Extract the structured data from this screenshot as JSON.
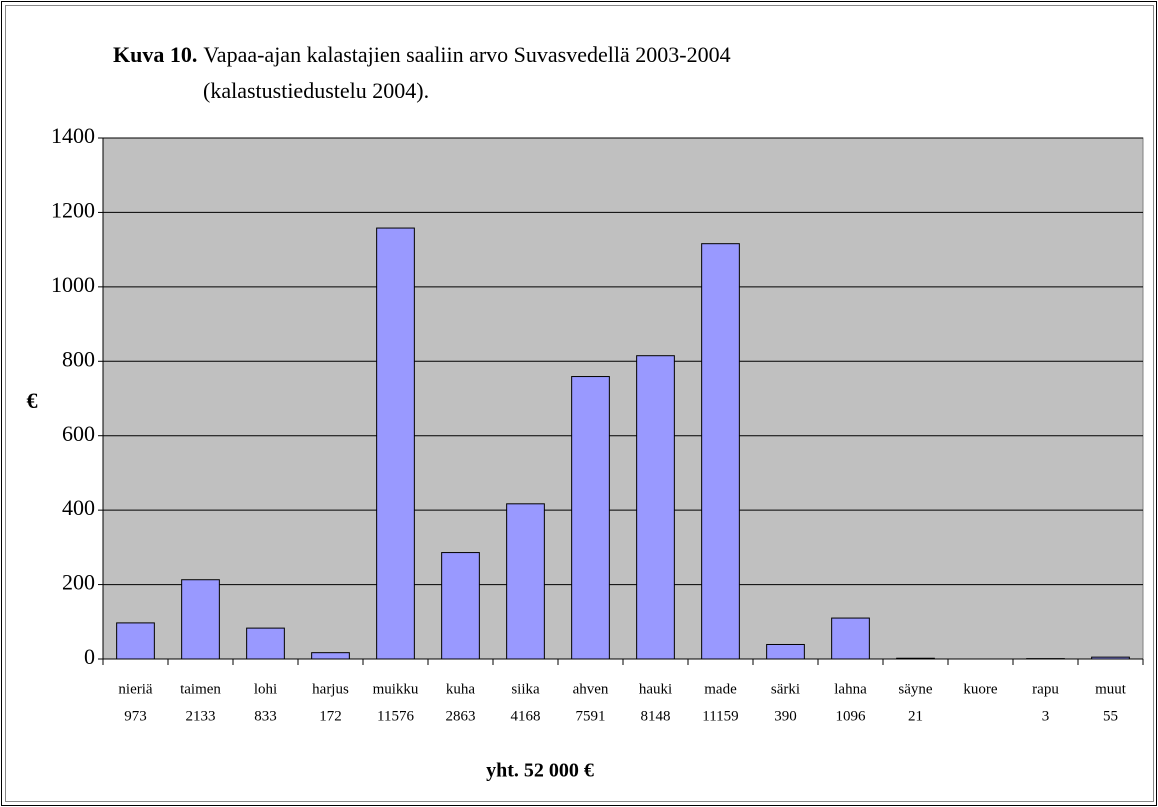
{
  "chart_data": {
    "type": "bar",
    "title_prefix": "Kuva 10.",
    "title": "Vapaa-ajan kalastajien saaliin arvo Suvasvedellä 2003-2004",
    "subtitle": "(kalastustiedustelu 2004).",
    "y_label": "€",
    "x_label": "yht. 52 000 €",
    "categories": [
      "nieriä",
      "taimen",
      "lohi",
      "harjus",
      "muikku",
      "kuha",
      "siika",
      "ahven",
      "hauki",
      "made",
      "särki",
      "lahna",
      "säyne",
      "kuore",
      "rapu",
      "muut"
    ],
    "category_values": [
      973,
      2133,
      833,
      172,
      11576,
      2863,
      4168,
      7591,
      8148,
      11159,
      390,
      1096,
      21,
      null,
      3,
      55
    ],
    "values": [
      97,
      213,
      83,
      17,
      1158,
      286,
      417,
      759,
      815,
      1116,
      39,
      110,
      2,
      0,
      1,
      5
    ],
    "color": "#9999ff",
    "ylim": [
      0,
      1400
    ],
    "yticks": [
      0,
      200,
      400,
      600,
      800,
      1000,
      1200,
      1400
    ],
    "grid": true
  }
}
